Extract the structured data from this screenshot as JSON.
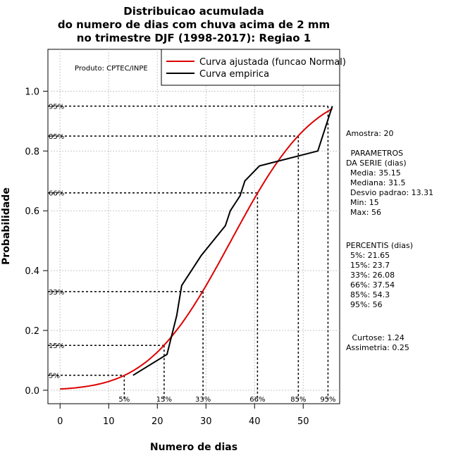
{
  "chart_data": {
    "type": "line",
    "title": [
      "Distribuicao acumulada",
      "do numero de dias com chuva acima de 2 mm",
      "no trimestre DJF (1998-2017): Regiao 1"
    ],
    "xlabel": "Numero de dias",
    "ylabel": "Probabilidade",
    "xlim": [
      -2.5,
      57.5
    ],
    "ylim": [
      -0.045,
      1.14
    ],
    "xticks": [
      "0",
      "10",
      "20",
      "30",
      "40",
      "50"
    ],
    "yticks": [
      "0.0",
      "0.2",
      "0.4",
      "0.6",
      "0.8",
      "1.0"
    ],
    "grid": true,
    "produto": "Produto: CPTEC/INPE",
    "legend": {
      "position": "top-right",
      "entries": [
        {
          "label": "Curva ajustada (funcao Normal)",
          "color": "#dd0000"
        },
        {
          "label": "Curva empirica",
          "color": "#000000"
        }
      ]
    },
    "normal_fit": {
      "mean": 35.15,
      "sd": 13.31,
      "x_start": 0,
      "x_end": 56,
      "color": "#dd0000"
    },
    "empirical": {
      "color": "#000000",
      "x": [
        15,
        22,
        24,
        25,
        29,
        34,
        35,
        37,
        38,
        41,
        53,
        56
      ],
      "y": [
        0.05,
        0.12,
        0.25,
        0.35,
        0.45,
        0.55,
        0.6,
        0.65,
        0.7,
        0.75,
        0.8,
        0.95
      ]
    },
    "percentile_guides": [
      {
        "label": "5%",
        "p": 0.05,
        "x": 13.2
      },
      {
        "label": "15%",
        "p": 0.15,
        "x": 21.4
      },
      {
        "label": "33%",
        "p": 0.33,
        "x": 29.4
      },
      {
        "label": "66%",
        "p": 0.66,
        "x": 40.6
      },
      {
        "label": "85%",
        "p": 0.85,
        "x": 49.0
      },
      {
        "label": "95%",
        "p": 0.95,
        "x": 55.1
      }
    ],
    "side_panel": {
      "amostra": "Amostra: 20",
      "parametros_title": [
        " PARAMETROS",
        "DA SERIE (dias)"
      ],
      "parametros": [
        "Media: 35.15",
        "Mediana: 31.5",
        "Desvio padrao: 13.31",
        "Min: 15",
        "Max: 56"
      ],
      "percentis_title": "PERCENTIS (dias)",
      "percentis": [
        "5%: 21.65",
        "15%: 23.7",
        "33%: 26.08",
        "66%: 37.54",
        "85%: 54.3",
        "95%: 56"
      ],
      "curtose": " Curtose: 1.24",
      "assimetria": "Assimetria: 0.25"
    }
  }
}
